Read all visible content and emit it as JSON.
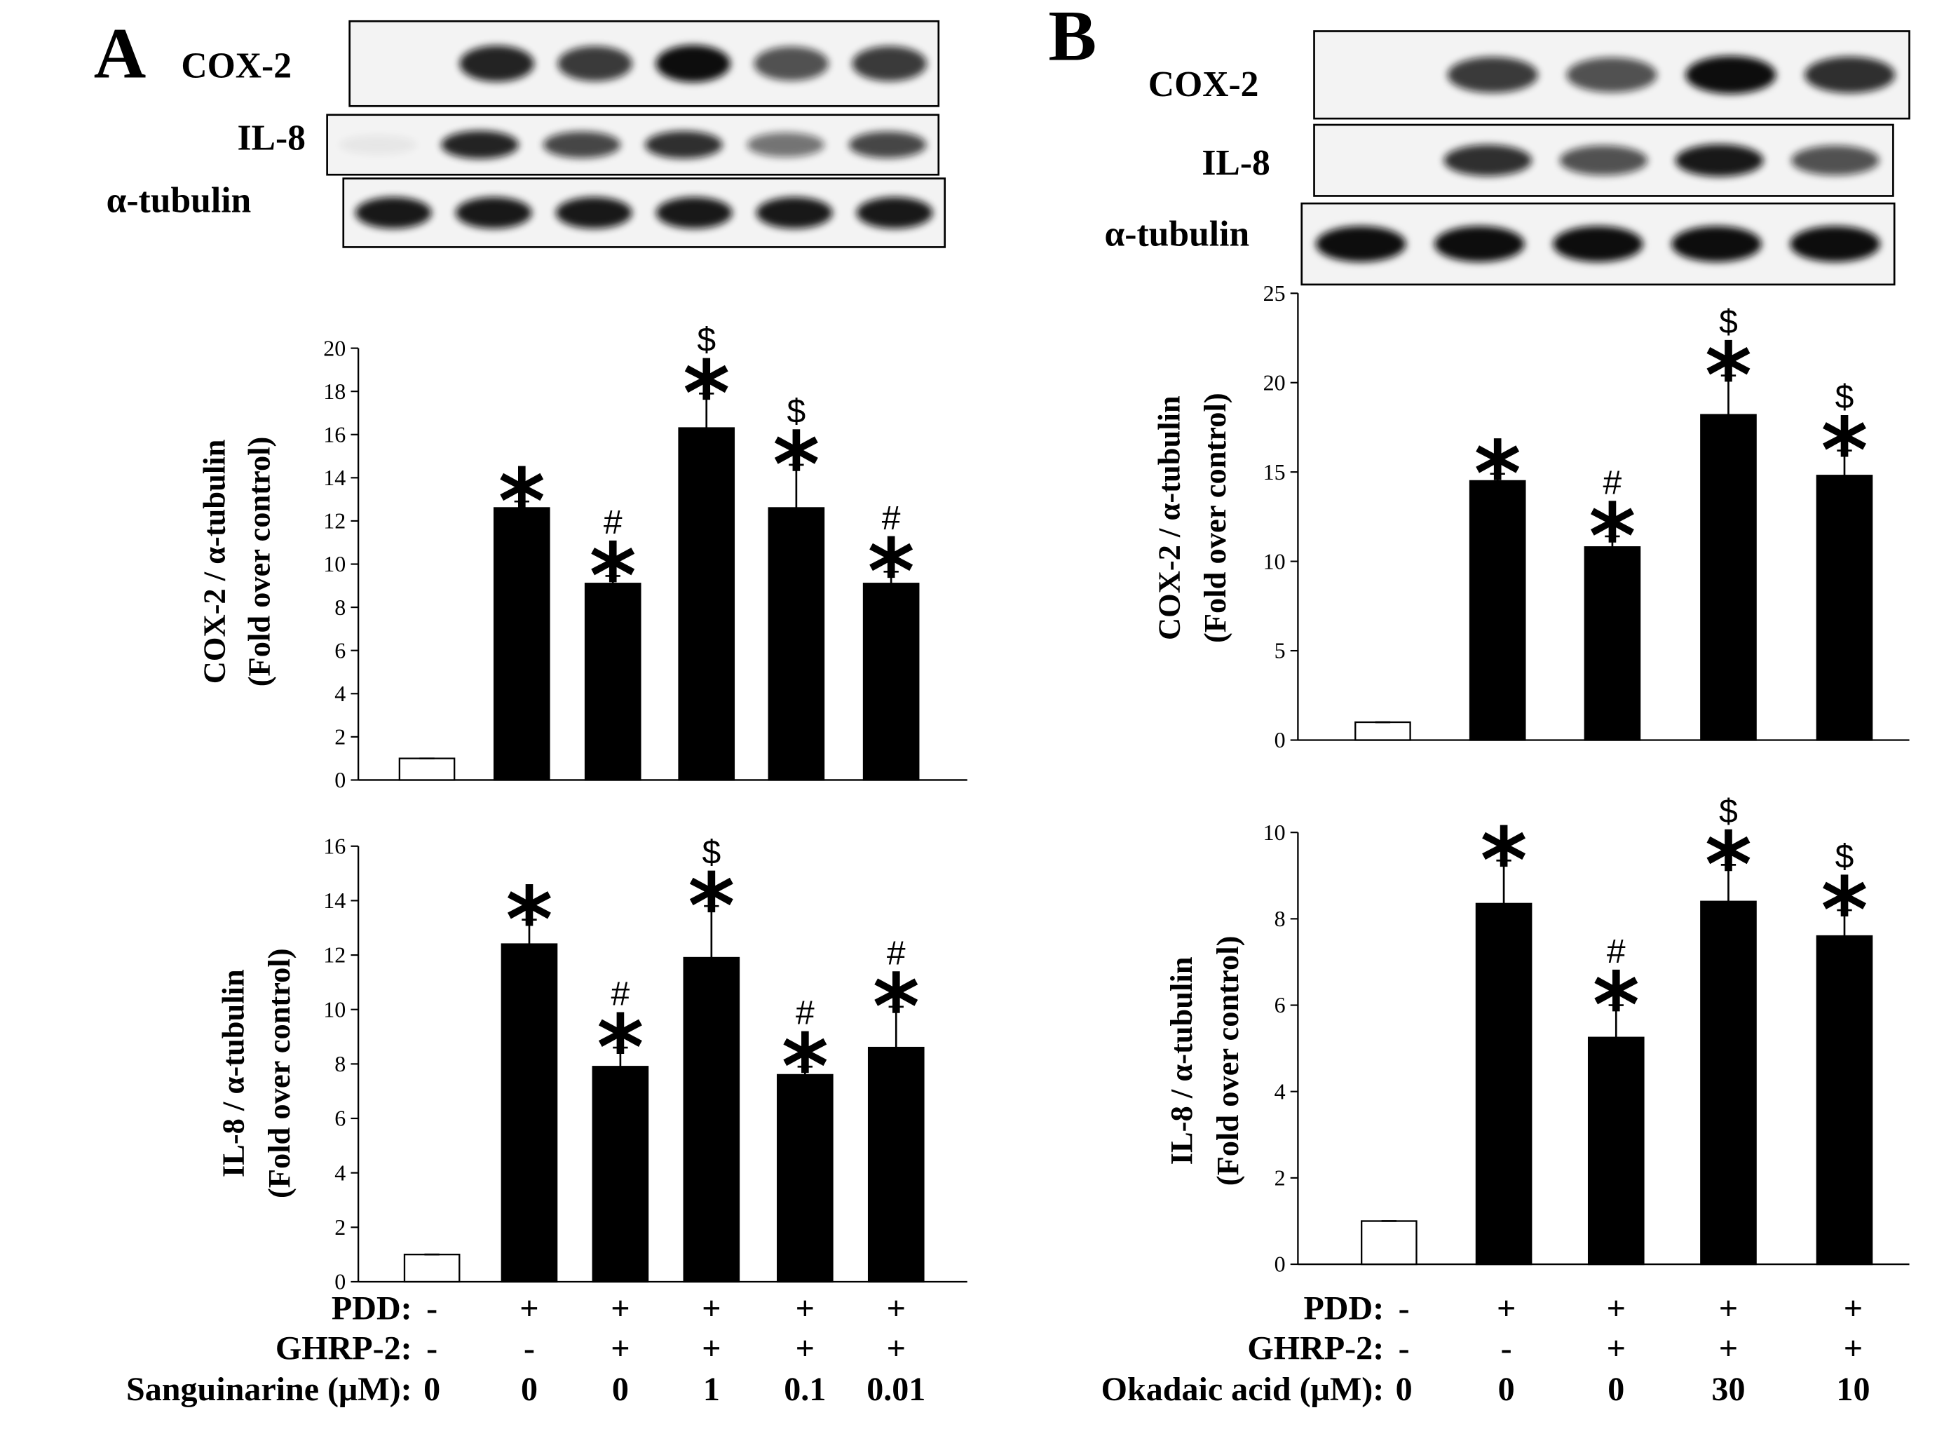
{
  "panels": [
    {
      "label": "A",
      "blots": [
        "COX-2",
        "IL-8",
        "α-tubulin"
      ],
      "treatments": [
        {
          "name": "PDD:",
          "values": [
            "-",
            "+",
            "+",
            "+",
            "+",
            "+"
          ]
        },
        {
          "name": "GHRP-2:",
          "values": [
            "-",
            "-",
            "+",
            "+",
            "+",
            "+"
          ]
        },
        {
          "name": "Sanguinarine (μM):",
          "values": [
            "0",
            "0",
            "0",
            "1",
            "0.1",
            "0.01"
          ]
        }
      ]
    },
    {
      "label": "B",
      "blots": [
        "COX-2",
        "IL-8",
        "α-tubulin"
      ],
      "treatments": [
        {
          "name": "PDD:",
          "values": [
            "-",
            "+",
            "+",
            "+",
            "+"
          ]
        },
        {
          "name": "GHRP-2:",
          "values": [
            "-",
            "-",
            "+",
            "+",
            "+"
          ]
        },
        {
          "name": "Okadaic acid (μM):",
          "values": [
            "0",
            "0",
            "0",
            "30",
            "10"
          ]
        }
      ]
    }
  ],
  "chart_data": [
    {
      "type": "bar",
      "ylabel": [
        "COX-2 / α-tubulin",
        "(Fold over control)"
      ],
      "values": [
        1,
        12.6,
        9.1,
        16.3,
        12.6,
        9.1
      ],
      "errors": [
        0,
        0.3,
        0.35,
        1.6,
        2.0,
        0.55
      ],
      "colors": [
        "#ffffff",
        "#000000",
        "#000000",
        "#000000",
        "#000000",
        "#000000"
      ],
      "markers": [
        null,
        [
          "*"
        ],
        [
          "#",
          "*"
        ],
        [
          "$",
          "*"
        ],
        [
          "$",
          "*"
        ],
        [
          "#",
          "*"
        ]
      ],
      "ylim": [
        0,
        20
      ],
      "yticks": [
        0,
        2,
        4,
        6,
        8,
        10,
        12,
        14,
        16,
        18,
        20
      ]
    },
    {
      "type": "bar",
      "ylabel": [
        "IL-8 / α-tubulin",
        "(Fold over control)"
      ],
      "values": [
        1,
        12.4,
        7.9,
        11.9,
        7.6,
        8.6
      ],
      "errors": [
        0,
        0.9,
        0.7,
        1.9,
        0.3,
        1.5
      ],
      "colors": [
        "#ffffff",
        "#000000",
        "#000000",
        "#000000",
        "#000000",
        "#000000"
      ],
      "markers": [
        null,
        [
          "*"
        ],
        [
          "#",
          "*"
        ],
        [
          "$",
          "*"
        ],
        [
          "#",
          "*"
        ],
        [
          "#",
          "*"
        ]
      ],
      "ylim": [
        0,
        16
      ],
      "yticks": [
        0,
        2,
        4,
        6,
        8,
        10,
        12,
        14,
        16
      ]
    },
    {
      "type": "bar",
      "ylabel": [
        "COX-2 / α-tubulin",
        "(Fold over control)"
      ],
      "values": [
        1,
        14.5,
        10.8,
        18.2,
        14.8
      ],
      "errors": [
        0,
        0.4,
        0.6,
        2.2,
        1.4
      ],
      "colors": [
        "#ffffff",
        "#000000",
        "#000000",
        "#000000",
        "#000000"
      ],
      "markers": [
        null,
        [
          "*"
        ],
        [
          "#",
          "*"
        ],
        [
          "$",
          "*"
        ],
        [
          "$",
          "*"
        ]
      ],
      "ylim": [
        0,
        25
      ],
      "yticks": [
        0,
        5,
        10,
        15,
        20,
        25
      ]
    },
    {
      "type": "bar",
      "ylabel": [
        "IL-8 / α-tubulin",
        "(Fold over control)"
      ],
      "values": [
        1,
        8.35,
        5.25,
        8.4,
        7.6
      ],
      "errors": [
        0,
        1.0,
        0.75,
        0.85,
        0.6
      ],
      "colors": [
        "#ffffff",
        "#000000",
        "#000000",
        "#000000",
        "#000000"
      ],
      "markers": [
        null,
        [
          "*"
        ],
        [
          "#",
          "*"
        ],
        [
          "$",
          "*"
        ],
        [
          "$",
          "*"
        ]
      ],
      "ylim": [
        0,
        10
      ],
      "yticks": [
        0,
        2,
        4,
        6,
        8,
        10
      ]
    }
  ]
}
